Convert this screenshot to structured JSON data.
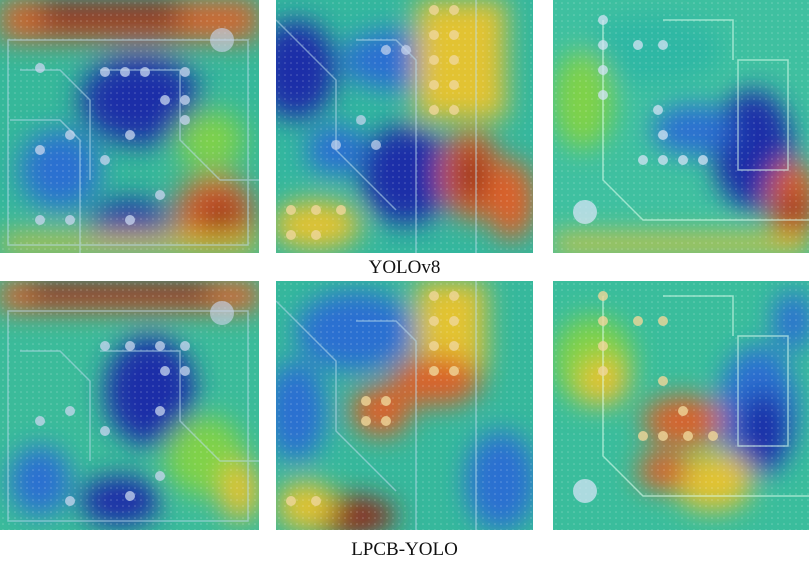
{
  "figure": {
    "rows": [
      {
        "caption": "YOLOv8",
        "panels": [
          {
            "name": "yolov8-heatmap-1"
          },
          {
            "name": "yolov8-heatmap-2"
          },
          {
            "name": "yolov8-heatmap-3"
          }
        ]
      },
      {
        "caption": "LPCB-YOLO",
        "panels": [
          {
            "name": "lpcb-yolo-heatmap-1"
          },
          {
            "name": "lpcb-yolo-heatmap-2"
          },
          {
            "name": "lpcb-yolo-heatmap-3"
          }
        ]
      }
    ],
    "colormap": [
      "#1f2fa8",
      "#2a6fd1",
      "#2fb7a4",
      "#7fd24a",
      "#e2c332",
      "#d9622a",
      "#8e2a1a"
    ]
  }
}
